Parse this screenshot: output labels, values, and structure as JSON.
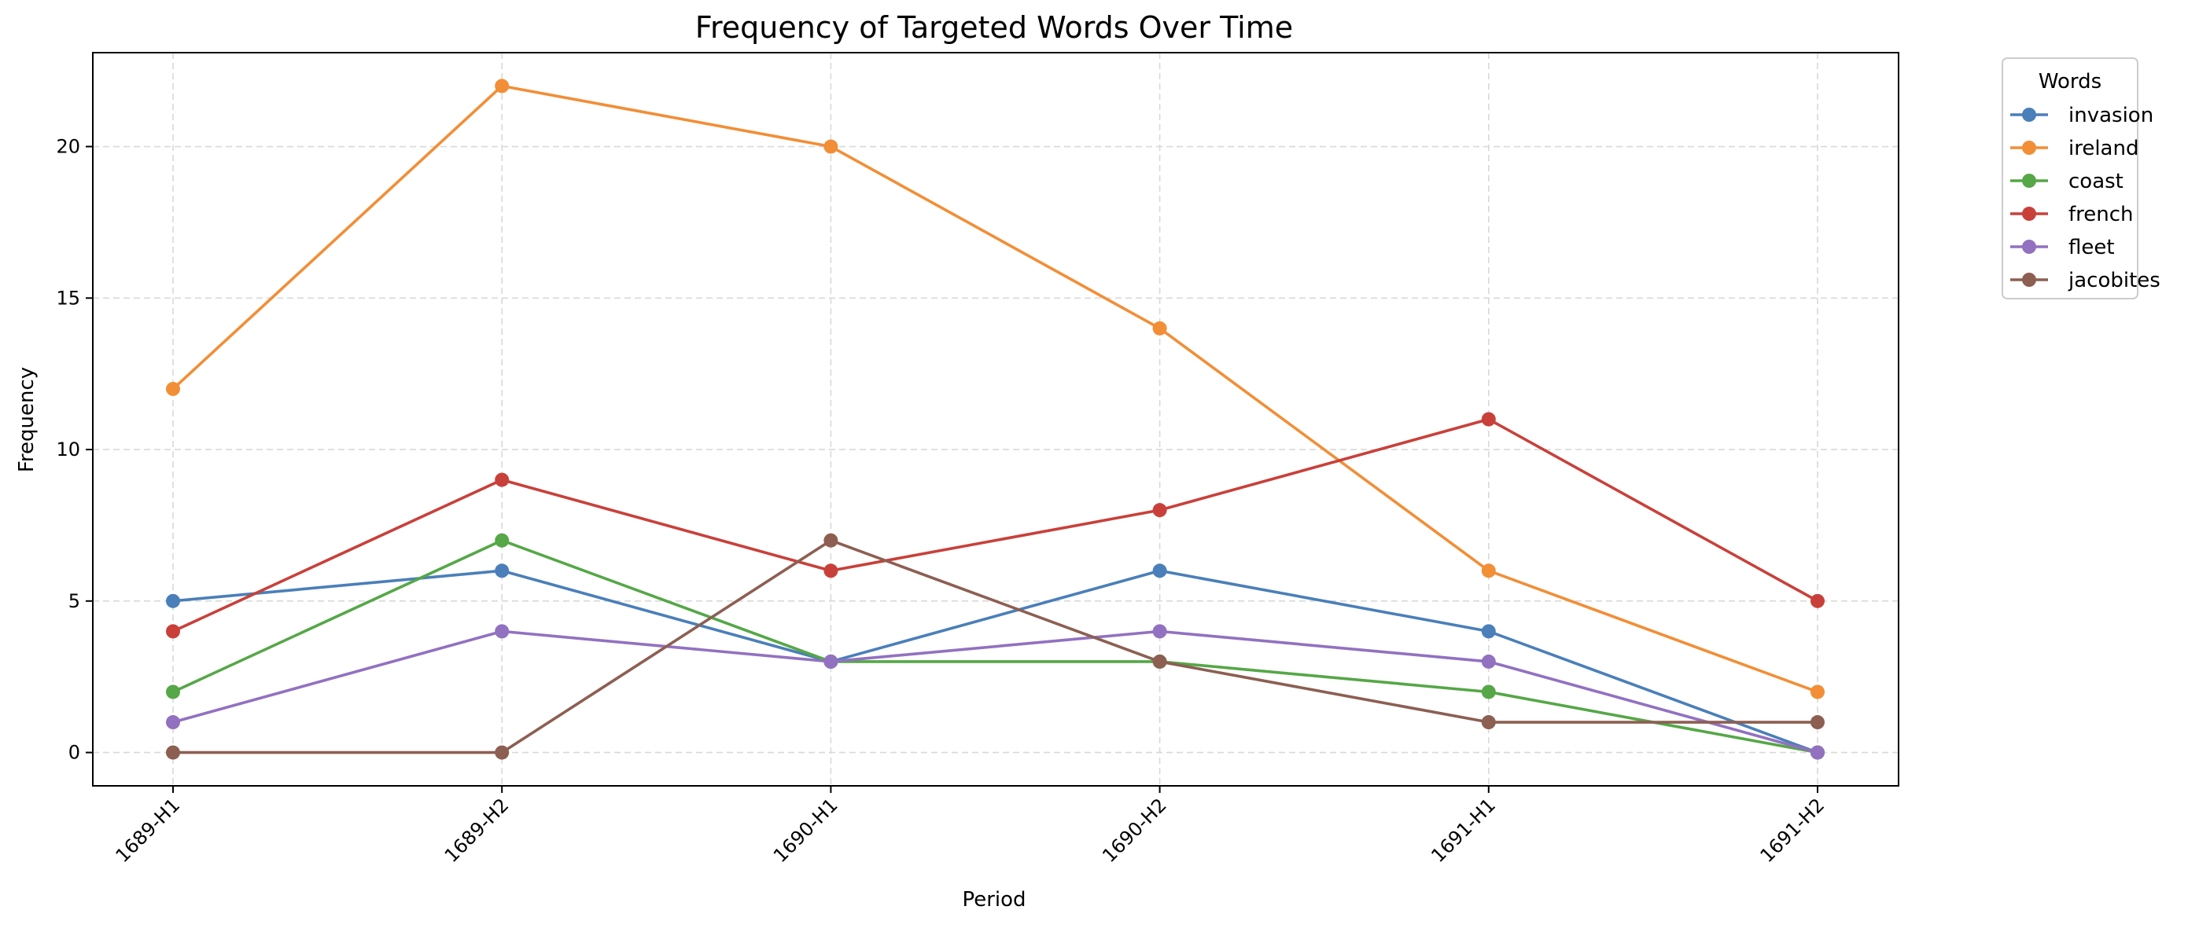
{
  "chart_data": {
    "type": "line",
    "title": "Frequency of Targeted Words Over Time",
    "xlabel": "Period",
    "ylabel": "Frequency",
    "categories": [
      "1689-H1",
      "1689-H2",
      "1690-H1",
      "1690-H2",
      "1691-H1",
      "1691-H2"
    ],
    "ylim": [
      -1.1,
      23.1
    ],
    "yticks": [
      0,
      5,
      10,
      15,
      20
    ],
    "grid": true,
    "legend": {
      "title": "Words",
      "placement": "outside-top-right"
    },
    "series": [
      {
        "name": "invasion",
        "color": "#4a7fb9",
        "values": [
          5,
          6,
          3,
          6,
          4,
          0
        ]
      },
      {
        "name": "ireland",
        "color": "#f28e36",
        "values": [
          12,
          22,
          20,
          14,
          6,
          2
        ]
      },
      {
        "name": "coast",
        "color": "#55a747",
        "values": [
          2,
          7,
          3,
          3,
          2,
          0
        ]
      },
      {
        "name": "french",
        "color": "#c9403a",
        "values": [
          4,
          9,
          6,
          8,
          11,
          5
        ]
      },
      {
        "name": "fleet",
        "color": "#9271c0",
        "values": [
          1,
          4,
          3,
          4,
          3,
          0
        ]
      },
      {
        "name": "jacobites",
        "color": "#8c5f52",
        "values": [
          0,
          0,
          7,
          3,
          1,
          1
        ]
      }
    ]
  }
}
